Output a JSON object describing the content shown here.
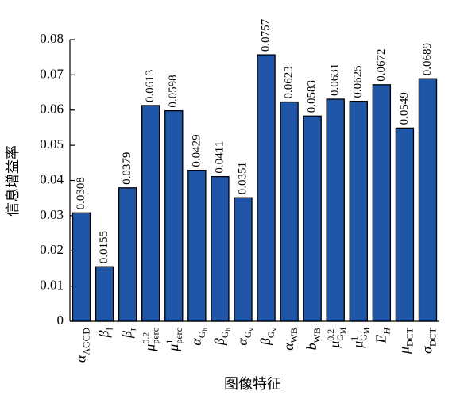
{
  "chart_data": {
    "type": "bar",
    "y_label": "信息增益率",
    "x_label": "图像特征",
    "categories": [
      {
        "base": "α",
        "sub": "AGGD"
      },
      {
        "base": "β",
        "sub": "l"
      },
      {
        "base": "β",
        "sub": "r"
      },
      {
        "base": "μ",
        "sup": "0.2",
        "sub": "perc"
      },
      {
        "base": "μ",
        "sup": "1",
        "sub": "perc"
      },
      {
        "base": "α",
        "sub": "G",
        "subsub": "h"
      },
      {
        "base": "β",
        "sub": "G",
        "subsub": "h"
      },
      {
        "base": "α",
        "sub": "G",
        "subsub": "v"
      },
      {
        "base": "β",
        "sub": "G",
        "subsub": "v"
      },
      {
        "base": "α",
        "sub": "WB"
      },
      {
        "base": "b",
        "sub": "WB"
      },
      {
        "base": "μ",
        "sup": "0.2",
        "sub": "G",
        "subsub": "M"
      },
      {
        "base": "μ",
        "sup": "1",
        "sub": "G",
        "subsub": "M"
      },
      {
        "base": "E",
        "sub": "H"
      },
      {
        "base": "μ",
        "sub": "DCT"
      },
      {
        "base": "σ",
        "sub": "DCT"
      }
    ],
    "values": [
      0.0308,
      0.0155,
      0.0379,
      0.0613,
      0.0598,
      0.0429,
      0.0411,
      0.0351,
      0.0757,
      0.0623,
      0.0583,
      0.0631,
      0.0625,
      0.0672,
      0.0549,
      0.0689
    ],
    "color": "#1f56a8",
    "ylim": [
      0,
      0.08
    ],
    "yticks": [
      0,
      0.01,
      0.02,
      0.03,
      0.04,
      0.05,
      0.06,
      0.07,
      0.08
    ],
    "grid": false
  }
}
